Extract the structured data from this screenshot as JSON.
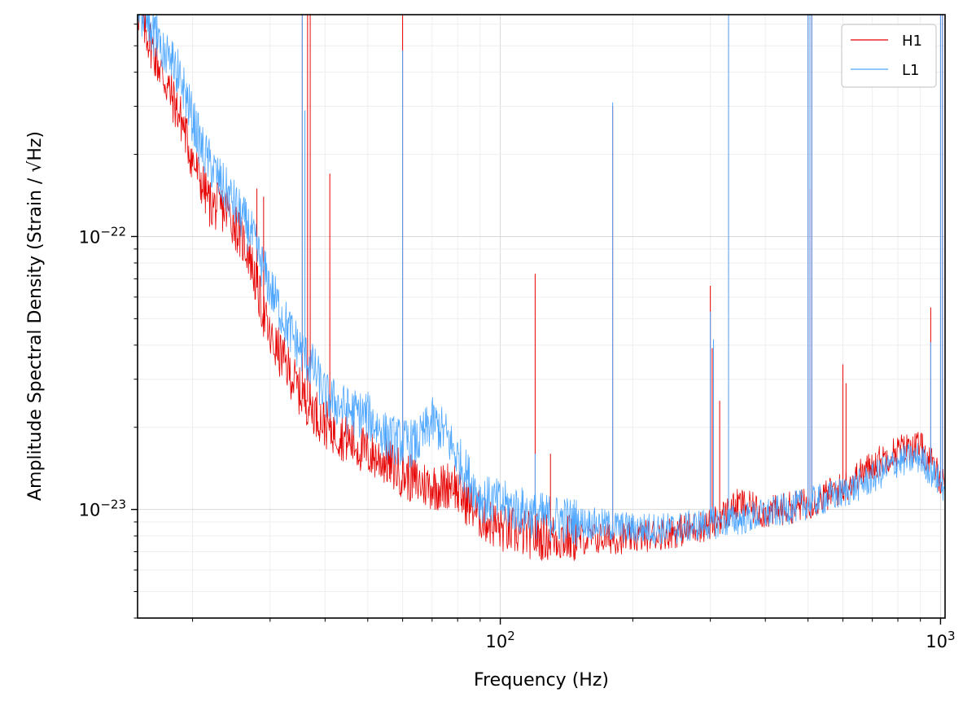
{
  "chart_data": {
    "type": "line",
    "title": "",
    "xlabel": "Frequency (Hz)",
    "ylabel": "Amplitude Spectral Density (Strain / √Hz)",
    "xscale": "log",
    "yscale": "log",
    "xlim": [
      15,
      1024
    ],
    "ylim": [
      4e-24,
      6.5e-22
    ],
    "grid": true,
    "legend_position": "top-right",
    "x_ticks": [
      {
        "value": 100,
        "base": "10",
        "exp": "2"
      },
      {
        "value": 1000,
        "base": "10",
        "exp": "3"
      }
    ],
    "y_ticks": [
      {
        "value": 1e-23,
        "base": "10",
        "exp": "−23"
      },
      {
        "value": 1e-22,
        "base": "10",
        "exp": "−22"
      }
    ],
    "series": [
      {
        "name": "H1",
        "color": "#e60000",
        "baseline": [
          [
            15,
            6.8e-22
          ],
          [
            17,
            4e-22
          ],
          [
            19,
            2.6e-22
          ],
          [
            20,
            1.9e-22
          ],
          [
            22,
            1.3e-22
          ],
          [
            24,
            1.25e-22
          ],
          [
            25,
            1.1e-22
          ],
          [
            27,
            8.5e-23
          ],
          [
            28,
            6.5e-23
          ],
          [
            30,
            4.2e-23
          ],
          [
            32,
            3.6e-23
          ],
          [
            35,
            2.7e-23
          ],
          [
            40,
            2.05e-23
          ],
          [
            45,
            1.8e-23
          ],
          [
            50,
            1.6e-23
          ],
          [
            55,
            1.5e-23
          ],
          [
            60,
            1.35e-23
          ],
          [
            65,
            1.25e-23
          ],
          [
            70,
            1.22e-23
          ],
          [
            75,
            1.2e-23
          ],
          [
            78,
            1.3e-23
          ],
          [
            80,
            1.15e-23
          ],
          [
            85,
            1.05e-23
          ],
          [
            90,
            9.5e-24
          ],
          [
            100,
            8.5e-24
          ],
          [
            120,
            8e-24
          ],
          [
            150,
            7.8e-24
          ],
          [
            200,
            7.9e-24
          ],
          [
            250,
            8.3e-24
          ],
          [
            300,
            8.8e-24
          ],
          [
            350,
            1.05e-23
          ],
          [
            400,
            9.7e-24
          ],
          [
            500,
            1.05e-23
          ],
          [
            600,
            1.2e-23
          ],
          [
            700,
            1.45e-23
          ],
          [
            800,
            1.65e-23
          ],
          [
            900,
            1.7e-23
          ],
          [
            1000,
            1.3e-23
          ],
          [
            1024,
            1.25e-23
          ]
        ],
        "lines": [
          [
            28,
            1.5e-22
          ],
          [
            29,
            1.4e-22
          ],
          [
            35.5,
            7e-22
          ],
          [
            36.5,
            7e-22
          ],
          [
            37,
            7e-22
          ],
          [
            41,
            1.7e-22
          ],
          [
            60,
            7e-22
          ],
          [
            120,
            7.3e-23
          ],
          [
            130,
            1.6e-23
          ],
          [
            180,
            3e-22
          ],
          [
            300,
            6.6e-23
          ],
          [
            303,
            3.9e-23
          ],
          [
            315,
            2.5e-23
          ],
          [
            330,
            7e-22
          ],
          [
            500,
            7e-22
          ],
          [
            505,
            1.5e-22
          ],
          [
            510,
            7e-22
          ],
          [
            600,
            3.4e-23
          ],
          [
            610,
            2.9e-23
          ],
          [
            950,
            5.5e-23
          ],
          [
            1000,
            7e-22
          ],
          [
            1010,
            7e-22
          ]
        ]
      },
      {
        "name": "L1",
        "color": "#4da6ff",
        "baseline": [
          [
            15,
            7e-22
          ],
          [
            17,
            5e-22
          ],
          [
            18,
            4.4e-22
          ],
          [
            19,
            3.6e-22
          ],
          [
            20,
            2.7e-22
          ],
          [
            21,
            2.1e-22
          ],
          [
            23,
            1.6e-22
          ],
          [
            25,
            1.3e-22
          ],
          [
            27,
            1.05e-22
          ],
          [
            30,
            6.5e-23
          ],
          [
            33,
            4.6e-23
          ],
          [
            35,
            3.9e-23
          ],
          [
            38,
            3.2e-23
          ],
          [
            40,
            2.6e-23
          ],
          [
            45,
            2.3e-23
          ],
          [
            50,
            2.2e-23
          ],
          [
            55,
            1.85e-23
          ],
          [
            60,
            1.75e-23
          ],
          [
            65,
            1.75e-23
          ],
          [
            70,
            2.1e-23
          ],
          [
            75,
            1.9e-23
          ],
          [
            80,
            1.55e-23
          ],
          [
            85,
            1.3e-23
          ],
          [
            90,
            1.1e-23
          ],
          [
            100,
            1.05e-23
          ],
          [
            120,
            9.5e-24
          ],
          [
            150,
            9e-24
          ],
          [
            200,
            8.5e-24
          ],
          [
            250,
            8.5e-24
          ],
          [
            300,
            8.9e-24
          ],
          [
            350,
            9.2e-24
          ],
          [
            400,
            9.6e-24
          ],
          [
            500,
            1.05e-23
          ],
          [
            600,
            1.15e-23
          ],
          [
            700,
            1.3e-23
          ],
          [
            800,
            1.5e-23
          ],
          [
            900,
            1.55e-23
          ],
          [
            1000,
            1.25e-23
          ],
          [
            1024,
            1.2e-23
          ]
        ],
        "lines": [
          [
            35.5,
            7e-22
          ],
          [
            36,
            2.9e-22
          ],
          [
            60,
            4.8e-22
          ],
          [
            120,
            1.6e-23
          ],
          [
            180,
            3.1e-22
          ],
          [
            300,
            5.3e-23
          ],
          [
            305,
            4.2e-23
          ],
          [
            330,
            7e-22
          ],
          [
            500,
            7e-22
          ],
          [
            505,
            7e-22
          ],
          [
            510,
            7e-22
          ],
          [
            950,
            4.1e-23
          ],
          [
            1000,
            7e-22
          ],
          [
            1010,
            7e-22
          ]
        ]
      }
    ]
  }
}
